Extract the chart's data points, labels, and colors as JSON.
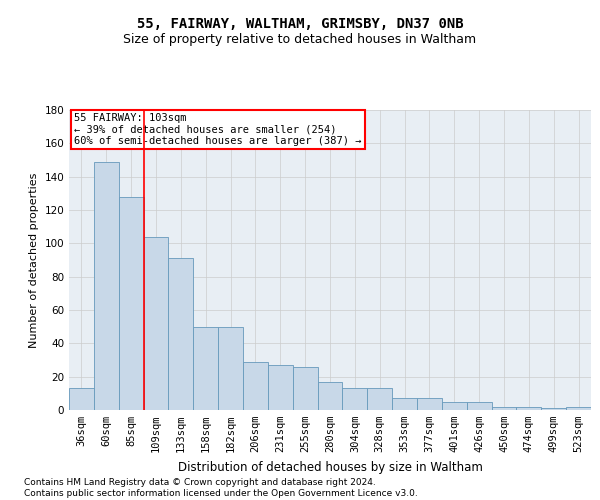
{
  "title": "55, FAIRWAY, WALTHAM, GRIMSBY, DN37 0NB",
  "subtitle": "Size of property relative to detached houses in Waltham",
  "xlabel": "Distribution of detached houses by size in Waltham",
  "ylabel": "Number of detached properties",
  "categories": [
    "36sqm",
    "60sqm",
    "85sqm",
    "109sqm",
    "133sqm",
    "158sqm",
    "182sqm",
    "206sqm",
    "231sqm",
    "255sqm",
    "280sqm",
    "304sqm",
    "328sqm",
    "353sqm",
    "377sqm",
    "401sqm",
    "426sqm",
    "450sqm",
    "474sqm",
    "499sqm",
    "523sqm"
  ],
  "values": [
    13,
    149,
    128,
    104,
    91,
    50,
    50,
    29,
    27,
    26,
    17,
    13,
    13,
    7,
    7,
    5,
    5,
    2,
    2,
    1,
    2
  ],
  "bar_color": "#c8d8e8",
  "bar_edge_color": "#6699bb",
  "red_line_index": 2.5,
  "annotation_text": "55 FAIRWAY: 103sqm\n← 39% of detached houses are smaller (254)\n60% of semi-detached houses are larger (387) →",
  "annotation_box_color": "white",
  "annotation_box_edge_color": "red",
  "ylim": [
    0,
    180
  ],
  "yticks": [
    0,
    20,
    40,
    60,
    80,
    100,
    120,
    140,
    160,
    180
  ],
  "grid_color": "#cccccc",
  "bg_color": "#e8eef4",
  "footer_line1": "Contains HM Land Registry data © Crown copyright and database right 2024.",
  "footer_line2": "Contains public sector information licensed under the Open Government Licence v3.0.",
  "title_fontsize": 10,
  "subtitle_fontsize": 9,
  "tick_fontsize": 7.5,
  "ylabel_fontsize": 8,
  "xlabel_fontsize": 8.5,
  "footer_fontsize": 6.5
}
